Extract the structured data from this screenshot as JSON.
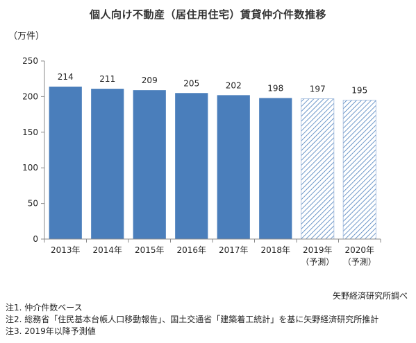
{
  "chart_data": {
    "type": "bar",
    "title": "個人向け不動産（居住用住宅）賃貸仲介件数推移",
    "ylabel": "（万件）",
    "xlabel": "",
    "ylim": [
      0,
      250
    ],
    "yticks": [
      0,
      50,
      100,
      150,
      200,
      250
    ],
    "categories": [
      {
        "line1": "2013年",
        "line2": ""
      },
      {
        "line1": "2014年",
        "line2": ""
      },
      {
        "line1": "2015年",
        "line2": ""
      },
      {
        "line1": "2016年",
        "line2": ""
      },
      {
        "line1": "2017年",
        "line2": ""
      },
      {
        "line1": "2018年",
        "line2": ""
      },
      {
        "line1": "2019年",
        "line2": "（予測）"
      },
      {
        "line1": "2020年",
        "line2": "（予測）"
      }
    ],
    "values": [
      214,
      211,
      209,
      205,
      202,
      198,
      197,
      195
    ],
    "forecast": [
      false,
      false,
      false,
      false,
      false,
      false,
      true,
      true
    ],
    "grid": false,
    "colors": {
      "actual": "#4a7ebb",
      "forecast_hatch": "#4a7ebb"
    }
  },
  "source": "矢野経済研究所調べ",
  "notes": [
    "注1. 仲介件数ベース",
    "注2. 総務省「住民基本台帳人口移動報告」、国土交通省「建築着工統計」を基に矢野経済研究所推計",
    "注3. 2019年以降予測値"
  ]
}
